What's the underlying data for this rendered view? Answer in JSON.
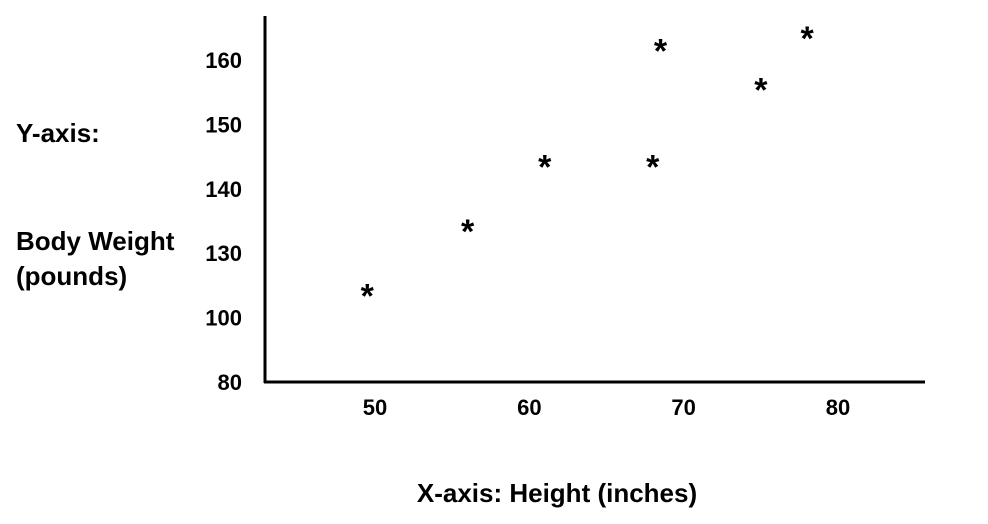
{
  "chart_data": {
    "type": "scatter",
    "title": "",
    "xlabel": "X-axis:  Height (inches)",
    "ylabel_prefix": "Y-axis:",
    "ylabel_lines": [
      "Body Weight",
      "(pounds)"
    ],
    "marker": "*",
    "x_ticks": [
      50,
      60,
      70,
      80
    ],
    "y_ticks": [
      "80",
      "100",
      "130",
      "140",
      "150",
      "160"
    ],
    "points": [
      {
        "x": 49.5,
        "y": 115
      },
      {
        "x": 56,
        "y": 135
      },
      {
        "x": 61,
        "y": 145
      },
      {
        "x": 68,
        "y": 145
      },
      {
        "x": 68.5,
        "y": 163
      },
      {
        "x": 75,
        "y": 157
      },
      {
        "x": 78,
        "y": 165
      }
    ],
    "grid": false,
    "legend": "none"
  }
}
